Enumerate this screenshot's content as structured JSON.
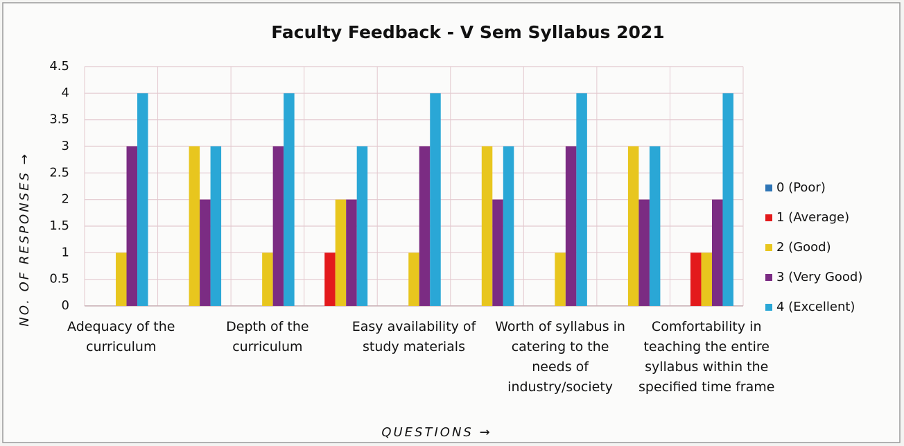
{
  "chart_data": {
    "type": "bar",
    "title": "Faculty Feedback - V Sem Syllabus 2021",
    "y_label": "NO. OF RESPONSES →",
    "x_label": "QUESTIONS →",
    "categories": [
      "Adequacy of the curriculum",
      null,
      "Depth of the curriculum",
      null,
      "Easy availability of study materials",
      null,
      "Worth of syllabus in catering to the needs of industry/society",
      null,
      "Comfortability in teaching the entire syllabus within the specified time frame"
    ],
    "series": [
      {
        "name": "0 (Poor)",
        "color": "#2e75b6",
        "values": [
          0,
          0,
          0,
          0,
          0,
          0,
          0,
          0,
          0
        ]
      },
      {
        "name": "1 (Average)",
        "color": "#e31a1c",
        "values": [
          0,
          0,
          0,
          1,
          0,
          0,
          0,
          0,
          1
        ]
      },
      {
        "name": "2 (Good)",
        "color": "#e8c61e",
        "values": [
          1,
          3,
          1,
          2,
          1,
          3,
          1,
          3,
          1
        ]
      },
      {
        "name": "3 (Very Good)",
        "color": "#7b2c83",
        "values": [
          3,
          2,
          3,
          2,
          3,
          2,
          3,
          2,
          2
        ]
      },
      {
        "name": "4 (Excellent)",
        "color": "#2aa7d6",
        "values": [
          4,
          3,
          4,
          3,
          4,
          3,
          4,
          3,
          4
        ]
      }
    ],
    "ylim": [
      0,
      4.5
    ],
    "yticks": [
      0,
      0.5,
      1,
      1.5,
      2,
      2.5,
      3,
      3.5,
      4,
      4.5
    ],
    "grid": true,
    "legend": "right"
  }
}
